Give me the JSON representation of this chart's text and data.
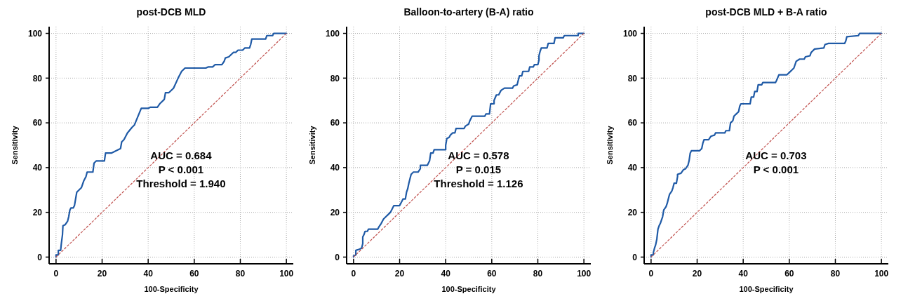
{
  "chart_data": [
    {
      "type": "line",
      "title": "post-DCB MLD",
      "xlabel": "100-Specificity",
      "ylabel": "Sensitivity",
      "xlim": [
        -3,
        103
      ],
      "ylim": [
        -3,
        103
      ],
      "xticks": [
        0,
        20,
        40,
        60,
        80,
        100
      ],
      "yticks": [
        0,
        20,
        40,
        60,
        80,
        100
      ],
      "grid": true,
      "marker": "none",
      "annotations": [
        "AUC = 0.684",
        "P < 0.001",
        "Threshold = 1.940"
      ],
      "series": [
        {
          "color": "#1f5aa6",
          "line_style": "solid",
          "x": [
            0,
            0,
            1,
            1,
            2,
            2.3,
            2.8,
            3,
            4,
            5,
            5.5,
            6,
            6.5,
            7.5,
            8,
            8.5,
            9,
            10,
            11,
            12,
            13,
            13.5,
            16,
            16.5,
            17.5,
            21,
            21.5,
            24,
            26,
            28,
            28.5,
            29.5,
            31,
            33,
            34,
            35,
            37,
            40,
            41,
            44,
            45,
            47,
            47.5,
            49,
            51,
            53,
            54.5,
            56,
            65,
            66,
            68,
            69,
            72,
            73,
            73.5,
            75,
            77,
            78,
            79,
            81,
            82,
            84,
            84.5,
            85,
            91,
            91.5,
            94,
            94.5,
            100
          ],
          "values": [
            0,
            1,
            1,
            3,
            3,
            6,
            10,
            14,
            14.5,
            16,
            18,
            21,
            22,
            22,
            23,
            26,
            29,
            30,
            31,
            34,
            36,
            38,
            38,
            42,
            43,
            43,
            46.5,
            46.5,
            47.5,
            48.5,
            51.5,
            52.5,
            55.5,
            58,
            59,
            61.5,
            66.5,
            66.5,
            67,
            67,
            68.5,
            70.5,
            73.5,
            73.5,
            75.5,
            80,
            83,
            84.5,
            84.5,
            85,
            85,
            86,
            86,
            87.5,
            89,
            89.5,
            91.5,
            91.5,
            92.5,
            92.5,
            93.5,
            93.5,
            95,
            97.5,
            97.5,
            99,
            99,
            100,
            100
          ]
        },
        {
          "color": "#c0504d",
          "line_style": "dotted",
          "x": [
            0,
            100
          ],
          "values": [
            0,
            100
          ]
        }
      ]
    },
    {
      "type": "line",
      "title": "Balloon-to-artery (B-A) ratio",
      "xlabel": "100-Specificity",
      "ylabel": "Sensitivity",
      "xlim": [
        -3,
        103
      ],
      "ylim": [
        -3,
        103
      ],
      "xticks": [
        0,
        20,
        40,
        60,
        80,
        100
      ],
      "yticks": [
        0,
        20,
        40,
        60,
        80,
        100
      ],
      "grid": true,
      "marker": "none",
      "annotations": [
        "AUC = 0.578",
        "P = 0.015",
        "Threshold = 1.126"
      ],
      "series": [
        {
          "color": "#1f5aa6",
          "line_style": "solid",
          "x": [
            0,
            0,
            1,
            1,
            2.5,
            3.5,
            4,
            4,
            4.5,
            5,
            6,
            6.5,
            10.5,
            11,
            12,
            13,
            14,
            15,
            16,
            17,
            17.5,
            20,
            21,
            21.5,
            22.5,
            23,
            23.5,
            24,
            24.5,
            25,
            26,
            28,
            29,
            29,
            32,
            33,
            33.5,
            34.5,
            35,
            40,
            40,
            40.5,
            41.5,
            42,
            43,
            44,
            44.5,
            48,
            48.5,
            50,
            50.5,
            51.5,
            57,
            57.5,
            59,
            59.5,
            61,
            61,
            62,
            63,
            64,
            65.5,
            69,
            69.5,
            71,
            71.5,
            72,
            73,
            73.5,
            76,
            76.5,
            78,
            78.5,
            80,
            80.5,
            80.5,
            81,
            81.5,
            84,
            84.5,
            87,
            87.5,
            91,
            91.5,
            97.5,
            97.5,
            100
          ],
          "values": [
            0,
            0.5,
            1,
            3,
            3.5,
            4,
            6,
            9,
            10,
            11.5,
            11.5,
            12.5,
            12.5,
            13.5,
            15,
            17,
            18,
            19,
            20,
            22,
            23,
            23,
            25,
            26,
            26,
            29,
            30.5,
            33,
            35,
            37,
            38,
            38,
            39.5,
            41,
            41,
            43,
            46.5,
            46.5,
            48,
            48,
            50,
            53,
            53.5,
            54.5,
            55.5,
            55.5,
            57.5,
            57.5,
            58.5,
            59.5,
            61,
            63,
            63,
            64,
            64,
            68.5,
            68.5,
            70,
            72.5,
            72.5,
            74.5,
            75.5,
            75.5,
            76.5,
            77,
            79,
            81,
            81,
            83,
            83,
            85,
            85,
            86,
            86,
            88,
            90,
            92,
            93.5,
            93.5,
            95.5,
            95.5,
            98,
            98,
            99,
            99,
            100,
            100
          ]
        },
        {
          "color": "#c0504d",
          "line_style": "dotted",
          "x": [
            0,
            100
          ],
          "values": [
            0,
            100
          ]
        }
      ]
    },
    {
      "type": "line",
      "title": "post-DCB MLD + B-A ratio",
      "xlabel": "100-Specificity",
      "ylabel": "Sensitivity",
      "xlim": [
        -3,
        103
      ],
      "ylim": [
        -3,
        103
      ],
      "xticks": [
        0,
        20,
        40,
        60,
        80,
        100
      ],
      "yticks": [
        0,
        20,
        40,
        60,
        80,
        100
      ],
      "grid": true,
      "marker": "none",
      "annotations": [
        "AUC = 0.703",
        "P < 0.001"
      ],
      "series": [
        {
          "color": "#1f5aa6",
          "line_style": "solid",
          "x": [
            0,
            0,
            1,
            1,
            1.5,
            2,
            2.5,
            3,
            3.5,
            4,
            4.5,
            5,
            5.5,
            6.5,
            7,
            7.5,
            8,
            9,
            9.5,
            10,
            11,
            11.5,
            11.5,
            13,
            14,
            15,
            16,
            16.5,
            17,
            17.5,
            21,
            22,
            22.5,
            23,
            25,
            26,
            27.5,
            28,
            32,
            32.5,
            34,
            34.5,
            35.5,
            36,
            37,
            38,
            38.5,
            39,
            43,
            43.5,
            44.5,
            45,
            46,
            46.5,
            48,
            48.5,
            54,
            54.5,
            55.5,
            59,
            60,
            61,
            62,
            63,
            64.5,
            66.5,
            67,
            69,
            69.5,
            71,
            75,
            75.5,
            77,
            84,
            84.5,
            85,
            90,
            90.5,
            100
          ],
          "values": [
            0,
            1,
            1,
            2,
            4,
            5.5,
            8,
            12.5,
            14,
            15,
            16.5,
            18,
            21,
            22.5,
            24,
            26,
            28,
            29.5,
            31,
            33,
            33,
            36,
            37,
            37.5,
            39,
            39.5,
            41,
            43,
            46.5,
            47.5,
            47.5,
            48.5,
            51,
            52.5,
            52.5,
            54,
            54.5,
            55.5,
            55.5,
            56.5,
            56.5,
            60,
            61,
            63,
            64,
            65,
            67.5,
            68.5,
            68.5,
            71.5,
            71.5,
            74,
            74,
            77,
            77,
            78,
            78,
            79,
            81.5,
            81.5,
            82.5,
            83.5,
            84.5,
            87.5,
            88.5,
            88.5,
            89.5,
            90,
            91.5,
            93,
            93.5,
            95,
            95.5,
            95.5,
            96.5,
            98.5,
            99,
            100,
            100
          ]
        },
        {
          "color": "#c0504d",
          "line_style": "dotted",
          "x": [
            0,
            100
          ],
          "values": [
            0,
            100
          ]
        }
      ]
    }
  ]
}
